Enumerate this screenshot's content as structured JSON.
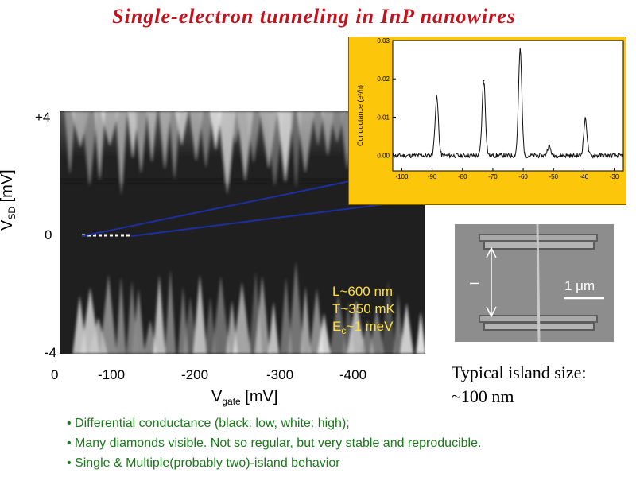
{
  "title": "Single-electron tunneling in InP nanowires",
  "stability_diagram": {
    "y_ticks": [
      "+4",
      "0",
      "-4"
    ],
    "x_ticks": [
      "0",
      "-100",
      "-200",
      "-300",
      "-400"
    ],
    "ylabel_main": "V",
    "ylabel_sub": "SD",
    "ylabel_unit": " [mV]",
    "xlabel_main": "V",
    "xlabel_sub": "gate",
    "xlabel_unit": " [mV]"
  },
  "params": {
    "length": "L~600 nm",
    "temperature": "T~350 mK",
    "charging_main": "E",
    "charging_sub": "c",
    "charging_rest": "~1 meV"
  },
  "inset": {
    "ylabel": "Conductance (e²/h)",
    "y_ticks": [
      "0.03",
      "0.02",
      "0.01",
      "0.00"
    ],
    "x_ticks": [
      "-100",
      "-90",
      "-80",
      "-70",
      "-60",
      "-50",
      "-40",
      "-30"
    ]
  },
  "sem": {
    "scale_label": "1 μm",
    "marker_label": "l"
  },
  "caption": {
    "line1": "Typical island size:",
    "line2": "~100 nm"
  },
  "bullets": [
    "• Differential conductance (black: low, white: high);",
    "• Many diamonds visible. Not so regular, but very stable and reproducible.",
    "• Single & Multiple(probably two)-island behavior"
  ],
  "chart_data": {
    "type": "line",
    "title": "",
    "xlabel": "",
    "ylabel": "Conductance (e²/h)",
    "xlim": [
      -103,
      -27
    ],
    "ylim": [
      -0.004,
      0.03
    ],
    "baseline": 0.0,
    "peaks": [
      {
        "x": -88.5,
        "y": 0.0153
      },
      {
        "x": -73,
        "y": 0.0195
      },
      {
        "x": -61,
        "y": 0.0275
      },
      {
        "x": -51.5,
        "y": 0.0025
      },
      {
        "x": -39.5,
        "y": 0.0095
      }
    ]
  },
  "colors": {
    "title": "#c0151f",
    "inset_bg": "#fcc60b",
    "params_text": "#ffdf3a",
    "bullet_text": "#1a7a1a",
    "zoom_lines": "#1c2fa0"
  }
}
